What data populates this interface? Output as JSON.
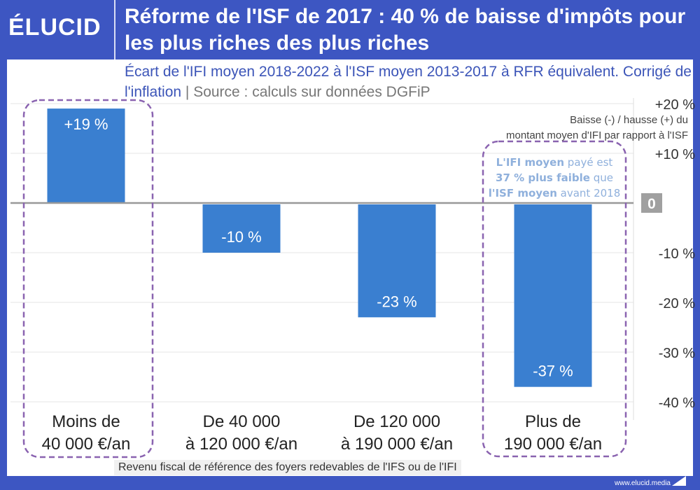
{
  "header": {
    "logo": "ÉLUCID",
    "title": "Réforme de l'ISF de 2017 : 40 % de baisse d'impôts pour les plus riches des plus riches"
  },
  "subtitle": {
    "main": "Écart de l'IFI moyen 2018-2022 à l'ISF moyen 2013-2017 à RFR équivalent. Corrigé de l'inflation",
    "separator": " | ",
    "source": "Source : calculs sur données DGFiP"
  },
  "footer": {
    "xlabel": "Revenu fiscal de référence des foyers redevables de l'IFS ou de l'IFI",
    "url": "www.elucid.media"
  },
  "colors": {
    "bar": "#3a7fd0",
    "header": "#3d56c2",
    "highlight": "#8a63b0",
    "annotation": "#8fb0dc"
  },
  "chart_data": {
    "type": "bar",
    "categories": [
      [
        "Moins de",
        "40 000 €/an"
      ],
      [
        "De 40 000",
        "à 120 000 €/an"
      ],
      [
        "De 120 000",
        "à 190 000 €/an"
      ],
      [
        "Plus de",
        "190 000 €/an"
      ]
    ],
    "values": [
      19,
      -10,
      -23,
      -37
    ],
    "data_labels": [
      "+19 %",
      "-10 %",
      "-23 %",
      "-37 %"
    ],
    "ylim": [
      -40,
      20
    ],
    "yticks": [
      20,
      10,
      0,
      -10,
      -20,
      -30,
      -40
    ],
    "ytick_labels": [
      "+20 %",
      "+10 %",
      "0",
      "-10 %",
      "-20 %",
      "-30 %",
      "-40 %"
    ],
    "ylabel": "Baisse (-) / hausse (+) du montant moyen d'IFI par rapport à l'ISF",
    "grid": true,
    "highlighted_categories": [
      0,
      3
    ],
    "annotation": {
      "parts": [
        {
          "text": "L'IFI moyen",
          "bold": true
        },
        {
          "text": " payé est",
          "bold": false
        },
        {
          "text": "37 % plus faible",
          "bold": true
        },
        {
          "text": " que",
          "bold": false
        },
        {
          "text": "l'ISF moyen",
          "bold": true
        },
        {
          "text": " avant 2018",
          "bold": false
        }
      ]
    }
  }
}
